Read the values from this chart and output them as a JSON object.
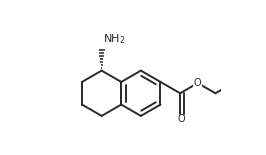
{
  "bg_color": "#ffffff",
  "line_color": "#2a2a2a",
  "line_width": 1.4,
  "dbo": 0.022,
  "text_color": "#2a2a2a",
  "nh2_label": "NH$_2$",
  "figsize": [
    2.66,
    1.55
  ],
  "dpi": 100,
  "r": 0.115
}
